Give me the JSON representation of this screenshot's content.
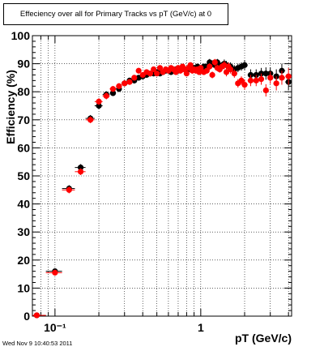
{
  "title": "Effeciency over all for Primary Tracks vs pT (GeV/c) at 0",
  "footer": "Wed Nov  9 10:40:53 2011",
  "chart_data": {
    "type": "scatter",
    "title": "Effeciency over all for Primary Tracks vs pT (GeV/c) at 0",
    "xlabel": "pT (GeV/c)",
    "ylabel": "Efficiency (%)",
    "xscale": "log",
    "xlim": [
      0.07,
      4.2
    ],
    "ylim": [
      0,
      100
    ],
    "grid": true,
    "y_ticks": [
      0,
      10,
      20,
      30,
      40,
      50,
      60,
      70,
      80,
      90,
      100
    ],
    "y_tick_labels": [
      "0",
      "10",
      "20",
      "30",
      "40",
      "50",
      "60",
      "70",
      "80",
      "90",
      "100"
    ],
    "x_ticks": [
      0.1,
      1
    ],
    "x_tick_labels": [
      "10⁻¹",
      "1"
    ],
    "series": [
      {
        "color": "#000000",
        "x": [
          0.075,
          0.1,
          0.125,
          0.15,
          0.175,
          0.2,
          0.225,
          0.25,
          0.275,
          0.3,
          0.325,
          0.35,
          0.375,
          0.4,
          0.425,
          0.45,
          0.475,
          0.5,
          0.525,
          0.55,
          0.575,
          0.6,
          0.625,
          0.65,
          0.675,
          0.7,
          0.725,
          0.75,
          0.775,
          0.8,
          0.825,
          0.85,
          0.875,
          0.9,
          0.925,
          0.95,
          0.975,
          1.0,
          1.05,
          1.1,
          1.15,
          1.2,
          1.25,
          1.3,
          1.35,
          1.4,
          1.45,
          1.5,
          1.55,
          1.6,
          1.7,
          1.8,
          1.9,
          2.0,
          2.2,
          2.4,
          2.6,
          2.8,
          3.0,
          3.3,
          3.6,
          4.0
        ],
        "y": [
          0.3,
          16,
          45.5,
          53,
          70.5,
          75,
          79,
          79.5,
          81,
          83,
          84,
          84,
          85,
          85.5,
          86,
          86.5,
          86.5,
          87,
          86.5,
          87,
          87.5,
          87.5,
          87,
          87.5,
          88,
          87.5,
          88,
          88.5,
          88,
          88,
          88.5,
          88,
          88.5,
          88.5,
          88,
          89,
          88.5,
          88,
          89,
          89,
          90.5,
          90,
          89.5,
          90.5,
          89,
          89.5,
          90,
          89.5,
          89,
          89,
          88,
          88.5,
          89,
          89.5,
          86,
          86,
          86.5,
          86.5,
          86.5,
          85.5,
          87.5,
          83.5
        ],
        "err": [
          0.5,
          1,
          1.2,
          1.2,
          1.2,
          1.2,
          1.2,
          1,
          1,
          1,
          1,
          1,
          1,
          1,
          1,
          1,
          1,
          1,
          1,
          1,
          1,
          1,
          1,
          1,
          1,
          1,
          1,
          1,
          1,
          1,
          1,
          1,
          1,
          1,
          1,
          1,
          1,
          1,
          1,
          1,
          1.2,
          1.2,
          1.2,
          1.2,
          1.2,
          1.2,
          1.5,
          1.5,
          1.5,
          1.5,
          1.5,
          1.5,
          1.5,
          1.8,
          2,
          2,
          2,
          2.2,
          2.2,
          2.5,
          2.5,
          3
        ]
      },
      {
        "color": "#ff0000",
        "x": [
          0.075,
          0.1,
          0.125,
          0.15,
          0.175,
          0.2,
          0.225,
          0.25,
          0.275,
          0.3,
          0.325,
          0.35,
          0.375,
          0.4,
          0.425,
          0.45,
          0.475,
          0.5,
          0.525,
          0.55,
          0.575,
          0.6,
          0.625,
          0.65,
          0.675,
          0.7,
          0.725,
          0.75,
          0.775,
          0.8,
          0.825,
          0.85,
          0.875,
          0.9,
          0.925,
          0.95,
          0.975,
          1.0,
          1.05,
          1.1,
          1.15,
          1.2,
          1.25,
          1.3,
          1.35,
          1.4,
          1.45,
          1.5,
          1.55,
          1.6,
          1.7,
          1.8,
          1.9,
          2.0,
          2.2,
          2.4,
          2.6,
          2.8,
          3.0,
          3.3,
          3.6,
          4.0
        ],
        "y": [
          0.3,
          15.5,
          45,
          51.5,
          70,
          76.5,
          78.5,
          81,
          82,
          83,
          83.5,
          85,
          87.5,
          86,
          87,
          86.5,
          88,
          86.5,
          88.5,
          87,
          88,
          87.5,
          88.5,
          88,
          87,
          88.5,
          87.5,
          89,
          88,
          86.5,
          88.5,
          89.5,
          87.5,
          88,
          87.5,
          88,
          87,
          88.5,
          87,
          87.5,
          89,
          86,
          90.5,
          88.5,
          88,
          89,
          89.5,
          87,
          89,
          88,
          86.5,
          83,
          84,
          82.5,
          84,
          84,
          84.5,
          80.5,
          85,
          83,
          85,
          85.5
        ],
        "err": [
          0.5,
          1,
          1.2,
          1.2,
          1.2,
          1.2,
          1.2,
          1,
          1,
          1,
          1,
          1,
          1,
          1,
          1,
          1,
          1,
          1,
          1,
          1,
          1,
          1,
          1,
          1,
          1,
          1,
          1,
          1,
          1,
          1,
          1,
          1,
          1,
          1,
          1,
          1,
          1,
          1,
          1,
          1,
          1.2,
          1.2,
          1.2,
          1.2,
          1.2,
          1.2,
          1.5,
          1.5,
          1.5,
          1.5,
          1.5,
          1.5,
          1.5,
          1.8,
          2,
          2,
          2,
          2.2,
          2.2,
          2.5,
          2.5,
          3
        ]
      }
    ]
  }
}
